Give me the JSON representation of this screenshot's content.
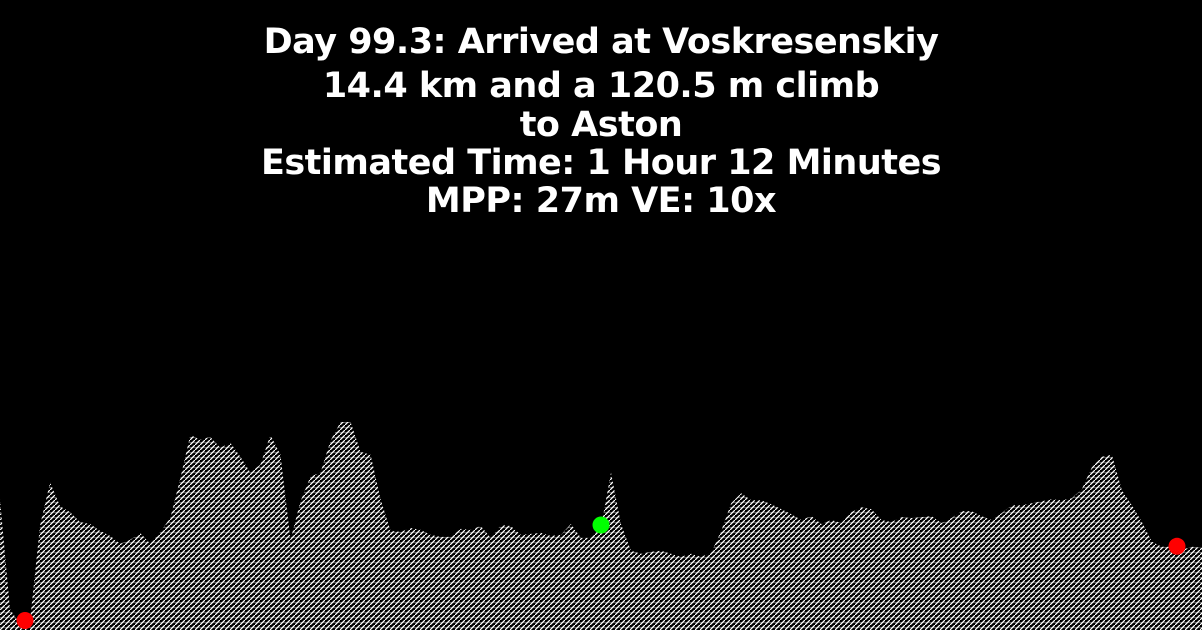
{
  "title": {
    "line1": "Day 99.3: Arrived at Voskresenskiy",
    "line2": "14.4 km and a 120.5 m climb",
    "line3": "to Aston",
    "line4": "Estimated Time: 1 Hour 12 Minutes",
    "line5": "MPP: 27m VE: 10x"
  },
  "colors": {
    "background": "#000000",
    "profile_hatch": "#ffffff",
    "marker_start": "#ff0000",
    "marker_mid": "#00ff00",
    "marker_end": "#ff0000"
  },
  "chart_data": {
    "type": "area",
    "title": "Day 99.3: Arrived at Voskresenskiy",
    "distance_km": 14.4,
    "climb_m": 120.5,
    "mpp_m": 27,
    "vertical_exaggeration": 10,
    "x_unit": "km",
    "y_unit": "m (relative elevation)",
    "xlim": [
      0,
      14.4
    ],
    "series": [
      {
        "x": [
          0.0,
          0.12,
          0.24,
          0.36,
          0.48,
          0.6,
          0.72,
          0.84,
          0.96,
          1.08,
          1.2,
          1.32,
          1.44,
          1.56,
          1.68,
          1.8,
          1.92,
          2.04,
          2.16,
          2.28,
          2.4,
          2.52,
          2.64,
          2.76,
          2.88,
          3.0,
          3.12,
          3.24,
          3.36,
          3.48,
          3.6,
          3.72,
          3.84,
          3.96,
          4.08,
          4.2,
          4.32,
          4.44,
          4.56,
          4.68,
          4.8,
          4.92,
          5.04,
          5.16,
          5.28,
          5.4,
          5.52,
          5.64,
          5.76,
          5.88,
          6.0,
          6.12,
          6.24,
          6.36,
          6.48,
          6.6,
          6.72,
          6.84,
          6.96,
          7.08,
          7.2,
          7.32,
          7.44,
          7.56,
          7.68,
          7.8,
          7.92,
          8.04,
          8.16,
          8.28,
          8.4,
          8.52,
          8.64,
          8.76,
          8.88,
          9.0,
          9.12,
          9.24,
          9.36,
          9.48,
          9.6,
          9.72,
          9.84,
          9.96,
          10.08,
          10.2,
          10.32,
          10.44,
          10.56,
          10.68,
          10.8,
          10.92,
          11.04,
          11.16,
          11.28,
          11.4,
          11.52,
          11.64,
          11.76,
          11.88,
          12.0,
          12.12,
          12.24,
          12.36,
          12.48,
          12.6,
          12.72,
          12.84,
          12.96,
          13.08,
          13.2,
          13.32,
          13.44,
          13.56,
          13.68,
          13.8,
          13.92,
          14.04,
          14.16,
          14.28,
          14.4
        ],
        "y": [
          12.6,
          1.5,
          0,
          0.3,
          10,
          14.3,
          11.9,
          11.3,
          10.3,
          10.1,
          9.4,
          8.9,
          8.1,
          8.5,
          9.2,
          8.1,
          9.3,
          10.7,
          14.7,
          19.1,
          18.6,
          18.9,
          17.8,
          18.3,
          16.9,
          15.3,
          16.1,
          19.1,
          17.1,
          8.5,
          12.4,
          14.9,
          15.3,
          18.5,
          20.4,
          20.4,
          17.4,
          17.1,
          12.6,
          9.4,
          9.3,
          9.7,
          9.5,
          9.0,
          8.8,
          8.8,
          9.6,
          9.5,
          9.9,
          8.7,
          10.0,
          9.9,
          9.0,
          9.1,
          9.2,
          8.9,
          9.0,
          10.1,
          8.7,
          8.7,
          9.8,
          15.3,
          10.1,
          7.4,
          7.1,
          7.3,
          7.4,
          7.1,
          6.8,
          7.1,
          6.8,
          7.2,
          9.4,
          12.2,
          13.2,
          12.5,
          12.5,
          12.1,
          11.6,
          11.1,
          10.5,
          10.9,
          10.1,
          10.5,
          10.2,
          11.3,
          11.8,
          11.6,
          10.5,
          10.3,
          10.8,
          10.7,
          10.8,
          10.9,
          10.2,
          10.7,
          11.4,
          11.4,
          10.9,
          10.5,
          11.2,
          12.0,
          12.0,
          12.2,
          12.4,
          12.6,
          12.5,
          12.7,
          13.6,
          15.8,
          16.9,
          17.1,
          13.5,
          12.0,
          10.3,
          8.3,
          7.8,
          7.8,
          7.5,
          7.8,
          7.7
        ]
      }
    ],
    "markers": [
      {
        "name": "start",
        "x": 0.3,
        "color": "#ff0000"
      },
      {
        "name": "midpoint",
        "x": 7.2,
        "color": "#00ff00"
      },
      {
        "name": "end",
        "x": 14.1,
        "color": "#ff0000"
      }
    ]
  }
}
